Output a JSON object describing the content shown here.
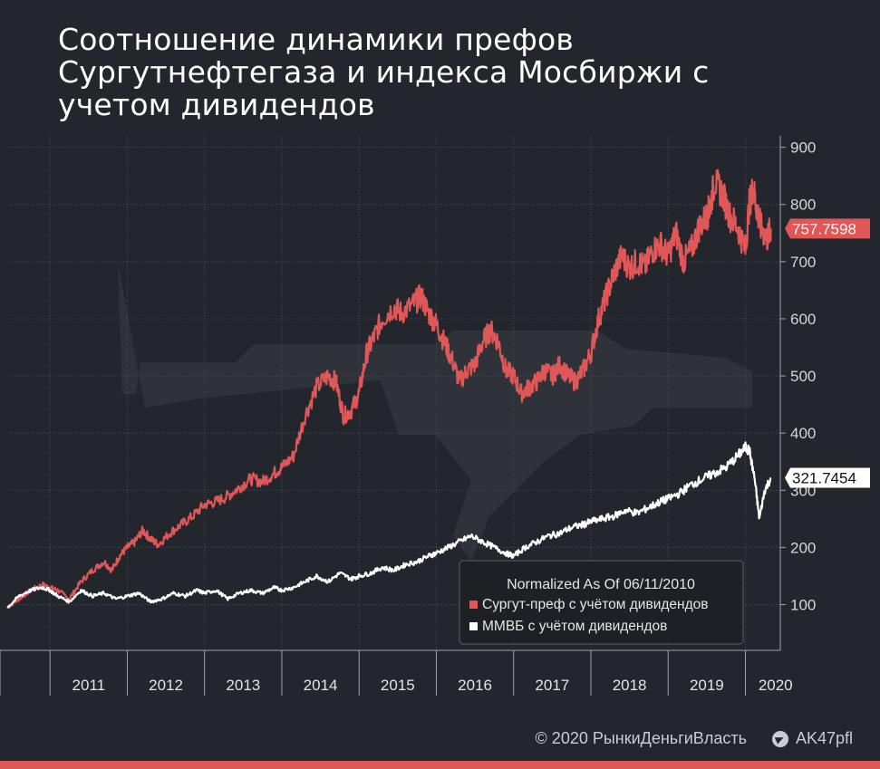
{
  "header": {
    "title": "Соотношение динамики префов Сургутнефтегаза и индекса Мосбиржи с учетом дивидендов"
  },
  "footer": {
    "copyright": "© 2020  РынкиДеньгиВласть",
    "telegram": "AK47pfl"
  },
  "colors": {
    "background": "#24262d",
    "sngsp": "#e05757",
    "mmvb": "#ffffff",
    "grid": "#565a64",
    "accent_bar": "#e05757"
  },
  "chart_data": {
    "type": "line",
    "yticks": [
      100,
      200,
      300,
      400,
      500,
      600,
      700,
      800,
      900
    ],
    "ylim": [
      20,
      920
    ],
    "xticks": [
      "2011",
      "2012",
      "2013",
      "2014",
      "2015",
      "2016",
      "2017",
      "2018",
      "2019",
      "2020"
    ],
    "xlim": [
      2010.47,
      2020.44
    ],
    "legend": {
      "title": "Normalized As Of 06/11/2010",
      "position": "bottom-right"
    },
    "series": [
      {
        "name": "Сургут-преф с учётом дивидендов",
        "color": "#e05757",
        "last_value_label": "757.7598",
        "x": [
          2010.45,
          2010.6,
          2010.75,
          2010.9,
          2011.0,
          2011.1,
          2011.25,
          2011.4,
          2011.55,
          2011.7,
          2011.8,
          2011.9,
          2012.0,
          2012.1,
          2012.2,
          2012.3,
          2012.4,
          2012.55,
          2012.7,
          2012.85,
          2013.0,
          2013.15,
          2013.3,
          2013.45,
          2013.6,
          2013.75,
          2013.9,
          2014.0,
          2014.15,
          2014.3,
          2014.45,
          2014.6,
          2014.7,
          2014.8,
          2014.9,
          2015.0,
          2015.1,
          2015.2,
          2015.3,
          2015.45,
          2015.55,
          2015.7,
          2015.8,
          2015.9,
          2016.0,
          2016.1,
          2016.2,
          2016.3,
          2016.4,
          2016.5,
          2016.6,
          2016.7,
          2016.8,
          2016.9,
          2017.0,
          2017.1,
          2017.2,
          2017.3,
          2017.4,
          2017.5,
          2017.6,
          2017.7,
          2017.8,
          2017.9,
          2018.0,
          2018.1,
          2018.2,
          2018.3,
          2018.4,
          2018.5,
          2018.6,
          2018.7,
          2018.8,
          2018.9,
          2019.0,
          2019.1,
          2019.2,
          2019.3,
          2019.4,
          2019.5,
          2019.55,
          2019.6,
          2019.7,
          2019.8,
          2019.9,
          2020.0,
          2020.05,
          2020.1,
          2020.15,
          2020.2,
          2020.28,
          2020.33
        ],
        "y": [
          95,
          110,
          125,
          135,
          130,
          125,
          110,
          140,
          160,
          175,
          160,
          185,
          200,
          210,
          230,
          215,
          205,
          225,
          240,
          255,
          275,
          280,
          290,
          305,
          320,
          315,
          330,
          340,
          360,
          430,
          480,
          500,
          490,
          430,
          440,
          470,
          540,
          570,
          600,
          620,
          610,
          625,
          640,
          610,
          590,
          560,
          530,
          490,
          510,
          520,
          560,
          580,
          560,
          510,
          500,
          470,
          480,
          490,
          510,
          500,
          520,
          500,
          490,
          510,
          540,
          600,
          640,
          680,
          710,
          690,
          700,
          690,
          720,
          730,
          710,
          750,
          700,
          720,
          760,
          780,
          800,
          840,
          820,
          780,
          760,
          720,
          800,
          830,
          790,
          760,
          740,
          757.76
        ]
      },
      {
        "name": "ММВБ с учётом дивидендов",
        "color": "#ffffff",
        "last_value_label": "321.7454",
        "x": [
          2010.45,
          2010.6,
          2010.75,
          2010.9,
          2011.0,
          2011.1,
          2011.25,
          2011.4,
          2011.55,
          2011.7,
          2011.85,
          2012.0,
          2012.15,
          2012.3,
          2012.45,
          2012.6,
          2012.75,
          2012.9,
          2013.0,
          2013.15,
          2013.3,
          2013.45,
          2013.6,
          2013.75,
          2013.9,
          2014.0,
          2014.15,
          2014.3,
          2014.45,
          2014.6,
          2014.75,
          2014.9,
          2015.0,
          2015.15,
          2015.3,
          2015.45,
          2015.6,
          2015.75,
          2015.9,
          2016.0,
          2016.15,
          2016.3,
          2016.45,
          2016.6,
          2016.75,
          2016.9,
          2017.0,
          2017.15,
          2017.3,
          2017.45,
          2017.6,
          2017.75,
          2017.9,
          2018.0,
          2018.15,
          2018.3,
          2018.45,
          2018.6,
          2018.75,
          2018.9,
          2019.0,
          2019.15,
          2019.3,
          2019.45,
          2019.6,
          2019.75,
          2019.9,
          2020.0,
          2020.05,
          2020.12,
          2020.18,
          2020.25,
          2020.33
        ],
        "y": [
          95,
          115,
          125,
          130,
          125,
          115,
          105,
          125,
          115,
          120,
          110,
          115,
          120,
          105,
          110,
          120,
          115,
          125,
          120,
          125,
          110,
          120,
          125,
          120,
          130,
          125,
          130,
          140,
          150,
          140,
          155,
          145,
          150,
          155,
          165,
          160,
          170,
          175,
          185,
          190,
          200,
          210,
          220,
          210,
          200,
          190,
          185,
          200,
          210,
          220,
          225,
          235,
          240,
          245,
          250,
          255,
          265,
          260,
          270,
          280,
          285,
          295,
          310,
          320,
          330,
          340,
          360,
          375,
          370,
          320,
          250,
          300,
          321.75
        ]
      }
    ]
  }
}
